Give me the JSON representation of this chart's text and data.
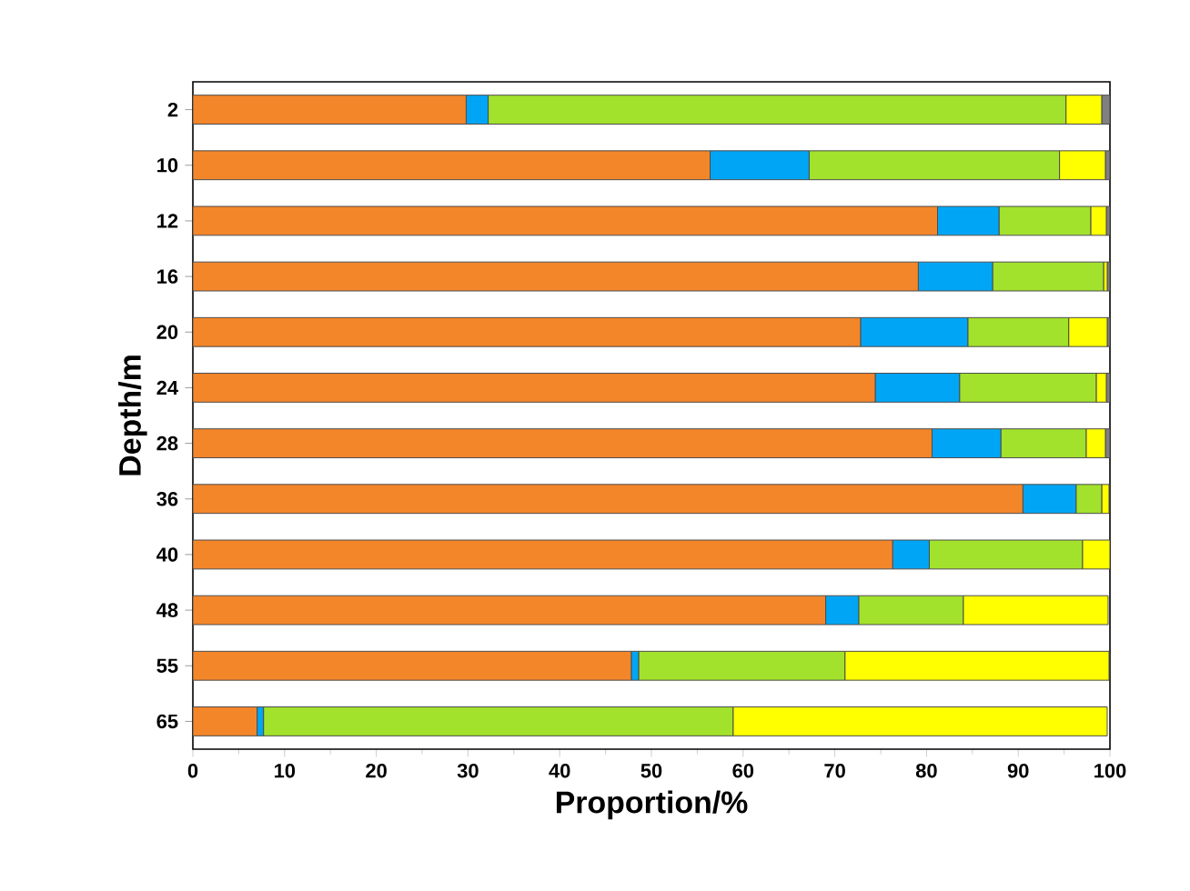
{
  "chart_data": {
    "type": "bar",
    "orientation": "horizontal",
    "stacked": true,
    "xlabel": "Proportion/%",
    "ylabel": "Depth/m",
    "categories": [
      "2",
      "10",
      "12",
      "16",
      "20",
      "24",
      "28",
      "36",
      "40",
      "48",
      "55",
      "65"
    ],
    "xlim": [
      0,
      100
    ],
    "xticks": [
      0,
      10,
      20,
      30,
      40,
      50,
      60,
      70,
      80,
      90,
      100
    ],
    "series": [
      {
        "color": "#f4862a",
        "values": [
          29.8,
          56.4,
          81.2,
          79.1,
          72.8,
          74.4,
          80.6,
          90.5,
          76.3,
          69.0,
          47.8,
          7.0
        ]
      },
      {
        "color": "#00a6f5",
        "values": [
          2.4,
          10.8,
          6.7,
          8.1,
          11.7,
          9.2,
          7.5,
          5.8,
          4.0,
          3.6,
          0.8,
          0.7
        ]
      },
      {
        "color": "#a2e22c",
        "values": [
          63.0,
          27.3,
          10.0,
          12.1,
          11.0,
          14.9,
          9.3,
          2.8,
          16.7,
          11.4,
          22.5,
          51.2
        ]
      },
      {
        "color": "#ffff00",
        "values": [
          3.9,
          5.0,
          1.7,
          0.4,
          4.2,
          1.1,
          2.1,
          0.8,
          3.0,
          15.8,
          28.8,
          40.8
        ]
      },
      {
        "color": "#808080",
        "values": [
          0.9,
          0.5,
          0.4,
          0.3,
          0.3,
          0.4,
          0.5,
          null,
          0.0,
          null,
          null,
          0.3
        ]
      }
    ]
  }
}
